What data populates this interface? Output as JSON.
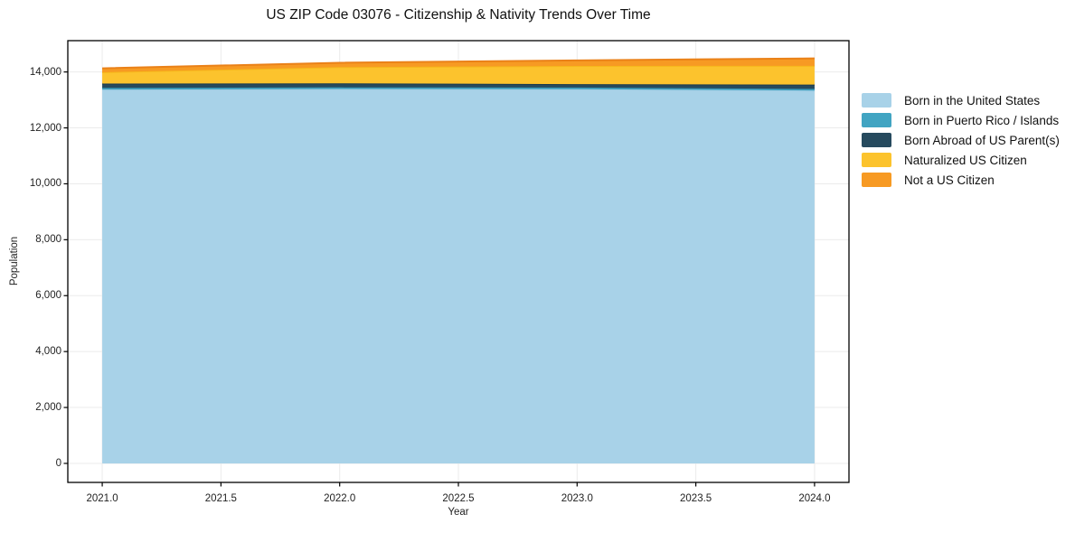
{
  "chart_data": {
    "type": "area",
    "stacked": true,
    "title": "US ZIP Code 03076 - Citizenship & Nativity Trends Over Time",
    "xlabel": "Year",
    "ylabel": "Population",
    "x": [
      2021,
      2022,
      2023,
      2024
    ],
    "series": [
      {
        "name": "Born in the United States",
        "color": "#a8d2e8",
        "line_color": "#9ccae2",
        "values": [
          13370,
          13390,
          13385,
          13335
        ]
      },
      {
        "name": "Born in Puerto Rico / Islands",
        "color": "#41a4c2",
        "line_color": "#3795b4",
        "values": [
          60,
          60,
          60,
          60
        ]
      },
      {
        "name": "Born Abroad of US Parent(s)",
        "color": "#264a5e",
        "line_color": "#1d3c4e",
        "values": [
          155,
          145,
          120,
          155
        ]
      },
      {
        "name": "Naturalized US Citizen",
        "color": "#fcc32d",
        "line_color": "#f6b71b",
        "values": [
          405,
          580,
          650,
          670
        ]
      },
      {
        "name": "Not a US Citizen",
        "color": "#f79a23",
        "line_color": "#ea8118",
        "values": [
          140,
          155,
          200,
          265
        ]
      }
    ],
    "xlim": [
      2020.855,
      2024.145
    ],
    "ylim": [
      -680,
      15120
    ],
    "x_ticks": {
      "values": [
        2021.0,
        2021.5,
        2022.0,
        2022.5,
        2023.0,
        2023.5,
        2024.0
      ],
      "labels": [
        "2021.0",
        "2021.5",
        "2022.0",
        "2022.5",
        "2023.0",
        "2023.5",
        "2024.0"
      ]
    },
    "y_ticks": {
      "values": [
        0,
        2000,
        4000,
        6000,
        8000,
        10000,
        12000,
        14000
      ],
      "labels": [
        "0",
        "2,000",
        "4,000",
        "6,000",
        "8,000",
        "10,000",
        "12,000",
        "14,000"
      ]
    },
    "grid": true,
    "grid_color": "#ebebeb",
    "spine_color": "#000000",
    "legend_position": "right-outside"
  }
}
